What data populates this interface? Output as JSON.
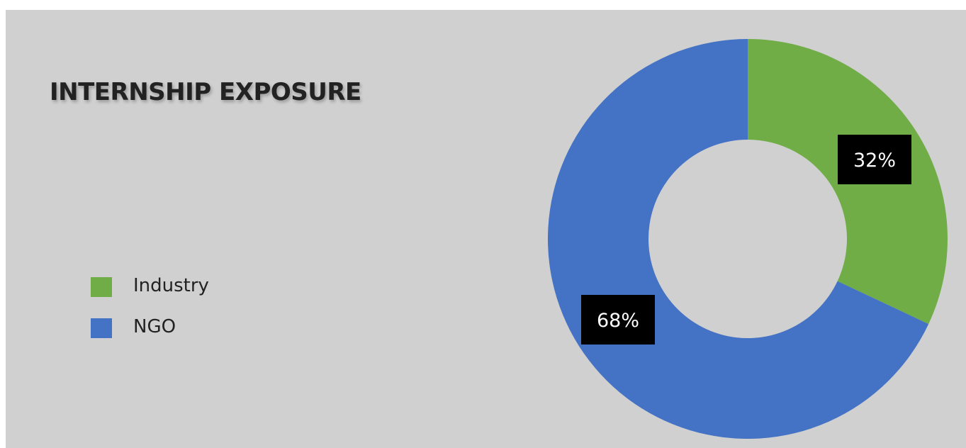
{
  "chart_data": {
    "type": "pie",
    "variant": "donut",
    "title": "INTERNSHIP EXPOSURE",
    "categories": [
      "Industry",
      "NGO"
    ],
    "values": [
      32,
      68
    ],
    "unit": "%",
    "data_labels": [
      "32%",
      "68%"
    ],
    "colors": [
      "#70ad47",
      "#4472c4"
    ],
    "legend_position": "left",
    "start_angle": "top, clockwise"
  }
}
